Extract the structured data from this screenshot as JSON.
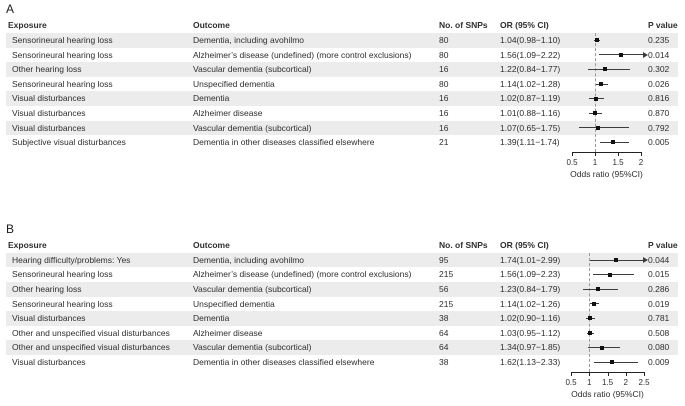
{
  "colors": {
    "stripe": "#ececec",
    "text": "#2e2e2e",
    "marker": "#111111",
    "ci_line": "#3d3d3d",
    "ref_line": "#999999",
    "axis": "#222222"
  },
  "columns": {
    "exposure": "Exposure",
    "outcome": "Outcome",
    "snps": "No. of SNPs",
    "or": "OR (95% CI)",
    "pvalue": "P value"
  },
  "chart_data": {
    "type": "scatter",
    "subtype": "forest-plot",
    "xlabel": "Odds ratio (95%CI)",
    "refline_note": "dashed vertical reference line at OR = 1",
    "panels": [
      {
        "label": "A",
        "xlim": [
          0.5,
          2.0
        ],
        "x_ticks": [
          0.5,
          1,
          1.5,
          2
        ],
        "x_tick_labels": [
          "0.5",
          "1",
          "1.5",
          "2"
        ],
        "refline": 1,
        "rows": [
          {
            "exposure": "Sensorineural hearing loss",
            "outcome": "Dementia, including avohilmo",
            "snps": "80",
            "or": 1.04,
            "lo": 0.98,
            "hi": 1.1,
            "or_text": "1.04(0.98−1.10)",
            "p": "0.235",
            "clipped": false
          },
          {
            "exposure": "Sensorineural hearing loss",
            "outcome": "Alzheimer’s disease (undefined) (more control exclusions)",
            "snps": "80",
            "or": 1.56,
            "lo": 1.09,
            "hi": 2.22,
            "or_text": "1.56(1.09−2.22)",
            "p": "0.014",
            "clipped": true
          },
          {
            "exposure": "Other hearing loss",
            "outcome": "Vascular dementia (subcortical)",
            "snps": "16",
            "or": 1.22,
            "lo": 0.84,
            "hi": 1.77,
            "or_text": "1.22(0.84−1.77)",
            "p": "0.302",
            "clipped": false
          },
          {
            "exposure": "Sensorineural hearing loss",
            "outcome": "Unspecified dementia",
            "snps": "80",
            "or": 1.14,
            "lo": 1.02,
            "hi": 1.28,
            "or_text": "1.14(1.02−1.28)",
            "p": "0.026",
            "clipped": false
          },
          {
            "exposure": "Visual disturbances",
            "outcome": "Dementia",
            "snps": "16",
            "or": 1.02,
            "lo": 0.87,
            "hi": 1.19,
            "or_text": "1.02(0.87−1.19)",
            "p": "0.816",
            "clipped": false
          },
          {
            "exposure": "Visual disturbances",
            "outcome": "Alzheimer disease",
            "snps": "16",
            "or": 1.01,
            "lo": 0.88,
            "hi": 1.16,
            "or_text": "1.01(0.88−1.16)",
            "p": "0.870",
            "clipped": false
          },
          {
            "exposure": "Visual disturbances",
            "outcome": "Vascular dementia (subcortical)",
            "snps": "16",
            "or": 1.07,
            "lo": 0.65,
            "hi": 1.75,
            "or_text": "1.07(0.65−1.75)",
            "p": "0.792",
            "clipped": false
          },
          {
            "exposure": "Subjective visual disturbances",
            "outcome": "Dementia in other diseases classified elsewhere",
            "snps": "21",
            "or": 1.39,
            "lo": 1.11,
            "hi": 1.74,
            "or_text": "1.39(1.11−1.74)",
            "p": "0.005",
            "clipped": false
          }
        ]
      },
      {
        "label": "B",
        "xlim": [
          0.5,
          2.5
        ],
        "x_ticks": [
          0.5,
          1,
          1.5,
          2,
          2.5
        ],
        "x_tick_labels": [
          "0.5",
          "1",
          "1.5",
          "2",
          "2.5"
        ],
        "refline": 1,
        "rows": [
          {
            "exposure": "Hearing difficulty/problems: Yes",
            "outcome": "Dementia, including avohilmo",
            "snps": "95",
            "or": 1.74,
            "lo": 1.01,
            "hi": 2.99,
            "or_text": "1.74(1.01−2.99)",
            "p": "0.044",
            "clipped": true
          },
          {
            "exposure": "Sensorineural hearing loss",
            "outcome": "Alzheimer’s disease (undefined) (more control exclusions)",
            "snps": "215",
            "or": 1.56,
            "lo": 1.09,
            "hi": 2.23,
            "or_text": "1.56(1.09−2.23)",
            "p": "0.015",
            "clipped": false
          },
          {
            "exposure": "Other hearing loss",
            "outcome": "Vascular dementia (subcortical)",
            "snps": "56",
            "or": 1.23,
            "lo": 0.84,
            "hi": 1.79,
            "or_text": "1.23(0.84−1.79)",
            "p": "0.286",
            "clipped": false
          },
          {
            "exposure": "Sensorineural hearing loss",
            "outcome": "Unspecified dementia",
            "snps": "215",
            "or": 1.14,
            "lo": 1.02,
            "hi": 1.26,
            "or_text": "1.14(1.02−1.26)",
            "p": "0.019",
            "clipped": false
          },
          {
            "exposure": "Visual disturbances",
            "outcome": "Dementia",
            "snps": "38",
            "or": 1.02,
            "lo": 0.9,
            "hi": 1.16,
            "or_text": "1.02(0.90−1.16)",
            "p": "0.781",
            "clipped": false
          },
          {
            "exposure": "Other and unspecified visual disturbances",
            "outcome": "Alzheimer disease",
            "snps": "64",
            "or": 1.03,
            "lo": 0.95,
            "hi": 1.12,
            "or_text": "1.03(0.95−1.12)",
            "p": "0.508",
            "clipped": false
          },
          {
            "exposure": "Other and unspecified visual disturbances",
            "outcome": "Vascular dementia (subcortical)",
            "snps": "64",
            "or": 1.34,
            "lo": 0.97,
            "hi": 1.85,
            "or_text": "1.34(0.97−1.85)",
            "p": "0.080",
            "clipped": false
          },
          {
            "exposure": "Visual disturbances",
            "outcome": "Dementia in other diseases classified elsewhere",
            "snps": "38",
            "or": 1.62,
            "lo": 1.13,
            "hi": 2.33,
            "or_text": "1.62(1.13−2.33)",
            "p": "0.009",
            "clipped": false
          }
        ]
      }
    ]
  }
}
